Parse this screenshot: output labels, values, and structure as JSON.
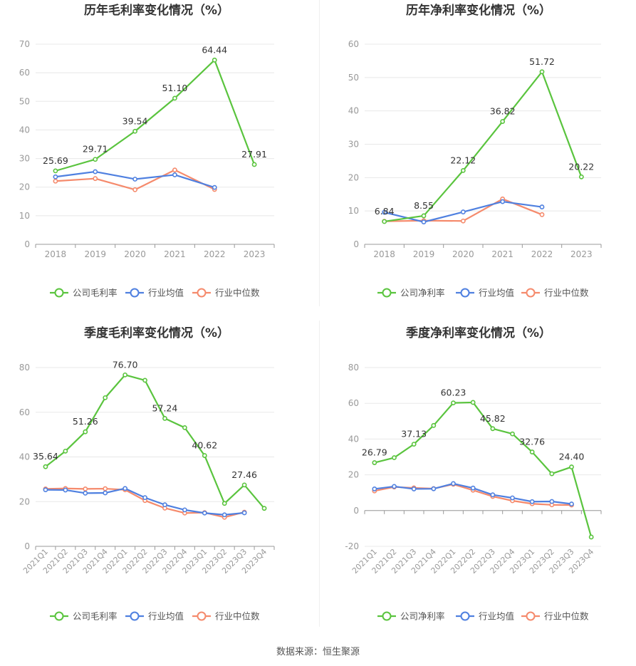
{
  "source": "数据来源：恒生聚源",
  "colors": {
    "company": "#5ac43e",
    "avg": "#4f80e0",
    "median": "#f58a6c",
    "grid": "#e8e8e8",
    "axis": "#999999",
    "text": "#333333"
  },
  "chart_data": [
    {
      "type": "line",
      "title": "历年毛利率变化情况（%）",
      "categories": [
        "2018",
        "2019",
        "2020",
        "2021",
        "2022",
        "2023"
      ],
      "yticks": [
        0,
        10,
        20,
        30,
        40,
        50,
        60,
        70
      ],
      "ylim": [
        0,
        70
      ],
      "rotate_x": false,
      "series": [
        {
          "name": "公司毛利率",
          "key": "company",
          "values": [
            25.69,
            29.71,
            39.54,
            51.1,
            64.44,
            27.91
          ]
        },
        {
          "name": "行业均值",
          "key": "avg",
          "values": [
            23.6,
            25.4,
            22.8,
            24.3,
            19.9,
            null
          ]
        },
        {
          "name": "行业中位数",
          "key": "median",
          "values": [
            22.1,
            23.0,
            19.1,
            26.0,
            19.2,
            null
          ]
        }
      ],
      "labels": [
        {
          "i": 0,
          "text": "25.69"
        },
        {
          "i": 1,
          "text": "29.71"
        },
        {
          "i": 2,
          "text": "39.54"
        },
        {
          "i": 3,
          "text": "51.10"
        },
        {
          "i": 4,
          "text": "64.44"
        },
        {
          "i": 5,
          "text": "27.91"
        }
      ]
    },
    {
      "type": "line",
      "title": "历年净利率变化情况（%）",
      "categories": [
        "2018",
        "2019",
        "2020",
        "2021",
        "2022",
        "2023"
      ],
      "yticks": [
        0,
        10,
        20,
        30,
        40,
        50,
        60
      ],
      "ylim": [
        0,
        60
      ],
      "rotate_x": false,
      "series": [
        {
          "name": "公司净利率",
          "key": "company",
          "values": [
            6.84,
            8.55,
            22.12,
            36.82,
            51.72,
            20.22
          ]
        },
        {
          "name": "行业均值",
          "key": "avg",
          "values": [
            9.6,
            6.7,
            9.7,
            12.8,
            11.2,
            null
          ]
        },
        {
          "name": "行业中位数",
          "key": "median",
          "values": [
            6.9,
            7.1,
            7.0,
            13.6,
            8.9,
            null
          ]
        }
      ],
      "labels": [
        {
          "i": 0,
          "text": "6.84"
        },
        {
          "i": 1,
          "text": "8.55"
        },
        {
          "i": 2,
          "text": "22.12"
        },
        {
          "i": 3,
          "text": "36.82"
        },
        {
          "i": 4,
          "text": "51.72"
        },
        {
          "i": 5,
          "text": "20.22"
        }
      ]
    },
    {
      "type": "line",
      "title": "季度毛利率变化情况（%）",
      "categories": [
        "2021Q1",
        "2021Q2",
        "2021Q3",
        "2021Q4",
        "2022Q1",
        "2022Q2",
        "2022Q3",
        "2022Q4",
        "2023Q1",
        "2023Q2",
        "2023Q3",
        "2023Q4"
      ],
      "yticks": [
        0,
        20,
        40,
        60,
        80
      ],
      "ylim": [
        0,
        80
      ],
      "rotate_x": true,
      "series": [
        {
          "name": "公司毛利率",
          "key": "company",
          "values": [
            35.64,
            42.6,
            51.26,
            66.5,
            76.7,
            74.3,
            57.24,
            53.1,
            40.62,
            19.2,
            27.46,
            17.0
          ]
        },
        {
          "name": "行业均值",
          "key": "avg",
          "values": [
            25.3,
            25.2,
            23.8,
            23.9,
            25.9,
            21.8,
            18.6,
            16.3,
            14.9,
            14.1,
            15.0,
            null
          ]
        },
        {
          "name": "行业中位数",
          "key": "median",
          "values": [
            25.7,
            25.9,
            25.7,
            25.8,
            25.3,
            20.5,
            17.1,
            14.9,
            15.1,
            13.0,
            15.3,
            null
          ]
        }
      ],
      "labels": [
        {
          "i": 0,
          "text": "35.64"
        },
        {
          "i": 2,
          "text": "51.26"
        },
        {
          "i": 4,
          "text": "76.70"
        },
        {
          "i": 6,
          "text": "57.24"
        },
        {
          "i": 8,
          "text": "40.62"
        },
        {
          "i": 10,
          "text": "27.46"
        }
      ]
    },
    {
      "type": "line",
      "title": "季度净利率变化情况（%）",
      "categories": [
        "2021Q1",
        "2021Q2",
        "2021Q3",
        "2021Q4",
        "2022Q1",
        "2022Q2",
        "2022Q3",
        "2022Q4",
        "2023Q1",
        "2023Q2",
        "2023Q3",
        "2023Q4"
      ],
      "yticks": [
        -20,
        0,
        20,
        40,
        60,
        80
      ],
      "ylim": [
        -20,
        80
      ],
      "rotate_x": true,
      "series": [
        {
          "name": "公司净利率",
          "key": "company",
          "values": [
            26.79,
            29.6,
            37.13,
            47.6,
            60.23,
            60.5,
            45.82,
            42.9,
            32.76,
            20.6,
            24.4,
            -14.8
          ]
        },
        {
          "name": "行业均值",
          "key": "avg",
          "values": [
            12.1,
            13.5,
            12.1,
            12.2,
            15.1,
            12.6,
            8.8,
            7.1,
            5.0,
            5.1,
            3.7,
            null
          ]
        },
        {
          "name": "行业中位数",
          "key": "median",
          "values": [
            11.0,
            13.2,
            12.7,
            12.3,
            14.7,
            11.4,
            7.9,
            5.5,
            3.8,
            3.2,
            3.1,
            null
          ]
        }
      ],
      "labels": [
        {
          "i": 0,
          "text": "26.79"
        },
        {
          "i": 2,
          "text": "37.13"
        },
        {
          "i": 4,
          "text": "60.23"
        },
        {
          "i": 6,
          "text": "45.82"
        },
        {
          "i": 8,
          "text": "32.76"
        },
        {
          "i": 10,
          "text": "24.40"
        }
      ]
    }
  ]
}
